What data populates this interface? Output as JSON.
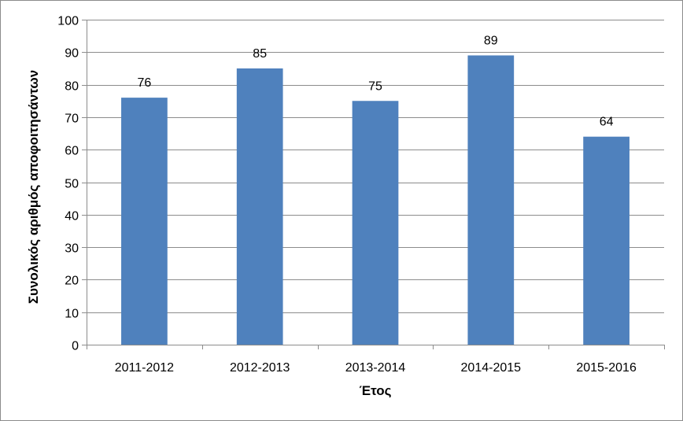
{
  "chart_data": {
    "type": "bar",
    "title": "",
    "xlabel": "Έτος",
    "ylabel": "Συνολικός αριθμός αποφοιτησάντων",
    "categories": [
      "2011-2012",
      "2012-2013",
      "2013-2014",
      "2014-2015",
      "2015-2016"
    ],
    "series": [
      {
        "values": [
          76,
          85,
          75,
          89,
          64
        ],
        "color": "#4f81bd"
      }
    ],
    "ylim": [
      0,
      100
    ],
    "yticks": [
      0,
      10,
      20,
      30,
      40,
      50,
      60,
      70,
      80,
      90,
      100
    ],
    "data_labels": [
      "76",
      "85",
      "75",
      "89",
      "64"
    ],
    "grid": true,
    "legend": "none"
  }
}
